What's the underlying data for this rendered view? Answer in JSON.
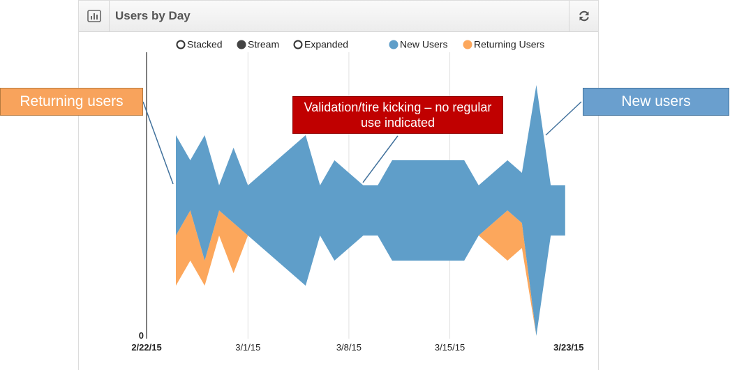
{
  "header": {
    "title": "Users by Day",
    "chart_icon": "bar-chart-icon",
    "refresh_icon": "refresh-icon"
  },
  "controls": {
    "modes": [
      {
        "label": "Stacked",
        "selected": false
      },
      {
        "label": "Stream",
        "selected": true
      },
      {
        "label": "Expanded",
        "selected": false
      }
    ]
  },
  "callouts": {
    "returning": "Returning users",
    "validation": "Validation/tire kicking – no regular use indicated",
    "new_users": "New users"
  },
  "colors": {
    "new_users": "#5f9ec9",
    "returning_users": "#fca75c",
    "callout_returning": "#f8a35c",
    "callout_validation": "#c00000",
    "callout_new": "#6a9fce"
  },
  "chart_data": {
    "type": "area",
    "mode": "stream",
    "x": [
      "2/24/15",
      "2/25/15",
      "2/26/15",
      "2/27/15",
      "2/28/15",
      "3/1/15",
      "3/2/15",
      "3/3/15",
      "3/4/15",
      "3/5/15",
      "3/6/15",
      "3/7/15",
      "3/8/15",
      "3/9/15",
      "3/10/15",
      "3/11/15",
      "3/12/15",
      "3/13/15",
      "3/14/15",
      "3/15/15",
      "3/16/15",
      "3/17/15",
      "3/18/15",
      "3/19/15",
      "3/20/15",
      "3/21/15",
      "3/22/15",
      "3/23/15"
    ],
    "series": [
      {
        "name": "New Users",
        "values": [
          4,
          2,
          5,
          1,
          3,
          2,
          3,
          4,
          5,
          6,
          2,
          4,
          3,
          2,
          2,
          4,
          4,
          4,
          4,
          4,
          4,
          2,
          2,
          2,
          2,
          10,
          2,
          2
        ]
      },
      {
        "name": "Returning Users",
        "values": [
          2,
          2,
          1,
          1,
          2,
          0,
          0,
          0,
          0,
          0,
          0,
          0,
          0,
          0,
          0,
          0,
          0,
          0,
          0,
          0,
          0,
          0,
          1,
          2,
          1,
          0,
          0,
          0
        ]
      }
    ],
    "legend": [
      "New Users",
      "Returning Users"
    ],
    "y_zero_label": "0",
    "x_tick_labels": [
      "2/22/15",
      "3/1/15",
      "3/8/15",
      "3/15/15",
      "3/23/15"
    ],
    "x_tick_bold": [
      true,
      false,
      false,
      false,
      true
    ],
    "legend_position": "top-right",
    "grid": true
  }
}
